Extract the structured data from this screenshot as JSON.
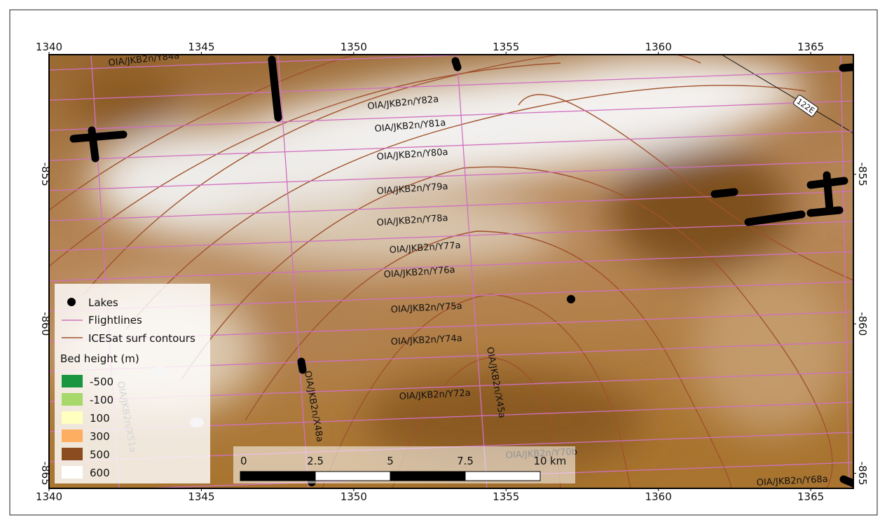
{
  "map": {
    "xlim": [
      1340,
      1366.4
    ],
    "ylim": [
      -851,
      -865.5
    ],
    "x_ticks": [
      1340,
      1345,
      1350,
      1355,
      1360,
      1365
    ],
    "y_ticks": [
      -855,
      -860,
      -865
    ],
    "flightline_labels": [
      "OIA/JKB2n/Y84a",
      "OIA/JKB2n/Y82a",
      "OIA/JKB2n/Y81a",
      "OIA/JKB2n/Y80a",
      "OIA/JKB2n/Y79a",
      "OIA/JKB2n/Y78a",
      "OIA/JKB2n/Y77a",
      "OIA/JKB2n/Y76a",
      "OIA/JKB2n/Y75a",
      "OIA/JKB2n/Y74a",
      "OIA/JKB2n/Y72a",
      "OIA/JKB2n/Y70b",
      "OIA/JKB2n/Y68a",
      "OIA/JKB2n/X48a",
      "OIA/JKB2n/X45a",
      "OIA/JKB2n/X51a"
    ],
    "contour_label": "122E",
    "legend": {
      "lakes": "Lakes",
      "flightlines": "Flightlines",
      "contours": "ICESat surf contours",
      "bed_title": "Bed height (m)",
      "bed_classes": [
        {
          "label": "-500",
          "color": "#1a9641"
        },
        {
          "label": "-100",
          "color": "#a6d96a"
        },
        {
          "label": "100",
          "color": "#ffffc0"
        },
        {
          "label": "300",
          "color": "#fdae61"
        },
        {
          "label": "500",
          "color": "#8b4c20"
        },
        {
          "label": "600",
          "color": "#ffffff"
        }
      ]
    },
    "scale_bar": {
      "ticks": [
        0,
        2.5,
        5,
        7.5,
        10
      ],
      "unit": "km"
    }
  }
}
